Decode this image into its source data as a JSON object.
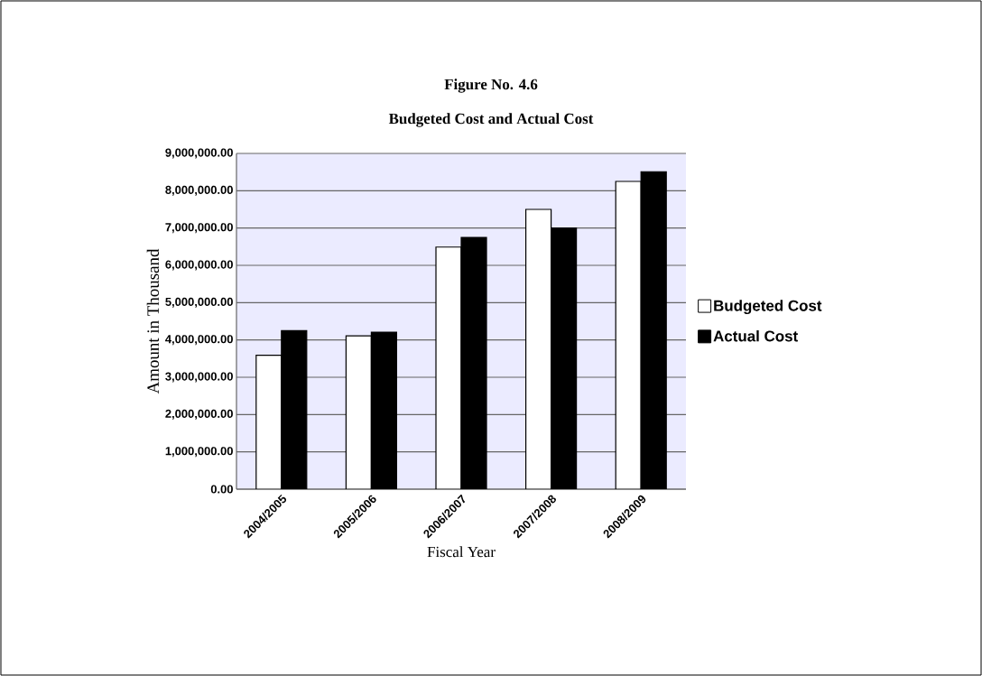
{
  "chart_data": {
    "type": "bar",
    "title": "Figure No. 4.6",
    "subtitle": "Budgeted Cost and Actual Cost",
    "xlabel": "Fiscal Year",
    "ylabel": "Amount in Thousand",
    "categories": [
      "2004/2005",
      "2005/2006",
      "2006/2007",
      "2007/2008",
      "2008/2009"
    ],
    "series": [
      {
        "name": "Budgeted Cost",
        "color": "#ffffff",
        "values": [
          3590000,
          4110000,
          6490000,
          7500000,
          8250000
        ]
      },
      {
        "name": "Actual Cost",
        "color": "#000000",
        "values": [
          4250000,
          4210000,
          6750000,
          7000000,
          8510000
        ]
      }
    ],
    "ylim": [
      0,
      9000000
    ],
    "yticks": [
      {
        "value": 0,
        "label": "0.00"
      },
      {
        "value": 1000000,
        "label": "1,000,000.00"
      },
      {
        "value": 2000000,
        "label": "2,000,000.00"
      },
      {
        "value": 3000000,
        "label": "3,000,000.00"
      },
      {
        "value": 4000000,
        "label": "4,000,000.00"
      },
      {
        "value": 5000000,
        "label": "5,000,000.00"
      },
      {
        "value": 6000000,
        "label": "6,000,000.00"
      },
      {
        "value": 7000000,
        "label": "7,000,000.00"
      },
      {
        "value": 8000000,
        "label": "8,000,000.00"
      },
      {
        "value": 9000000,
        "label": "9,000,000.00"
      }
    ],
    "grid": "y",
    "legend": "right"
  }
}
